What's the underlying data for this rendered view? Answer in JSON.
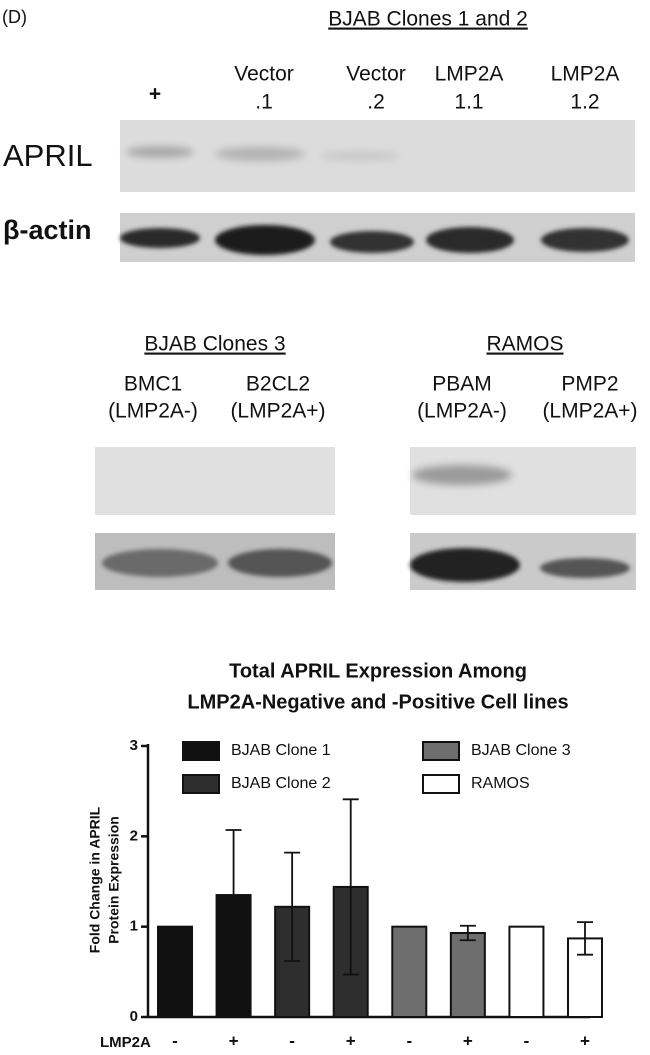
{
  "panel_label": "(D)",
  "blot_top": {
    "title": "BJAB Clones 1 and 2",
    "lanes": [
      [
        "+"
      ],
      [
        "Vector",
        ".1"
      ],
      [
        "Vector",
        ".2"
      ],
      [
        "LMP2A",
        "1.1"
      ],
      [
        "LMP2A",
        "1.2"
      ]
    ],
    "rows": [
      "APRIL",
      "β-actin"
    ]
  },
  "blot_clones3": {
    "title": "BJAB Clones 3",
    "lanes": [
      [
        "BMC1",
        "(LMP2A-)"
      ],
      [
        "B2CL2",
        "(LMP2A+)"
      ]
    ]
  },
  "blot_ramos": {
    "title": "RAMOS",
    "lanes": [
      [
        "PBAM",
        "(LMP2A-)"
      ],
      [
        "PMP2",
        "(LMP2A+)"
      ]
    ]
  },
  "chart_data": {
    "type": "bar",
    "title": [
      "Total APRIL Expression Among",
      "LMP2A-Negative and -Positive Cell lines"
    ],
    "ylabel": [
      "Fold Change in APRIL",
      "Protein Expression"
    ],
    "xlabel": "LMP2A",
    "categories": [
      "-",
      "+"
    ],
    "series": [
      {
        "name": "BJAB Clone 1",
        "color": "#111111",
        "values": [
          1,
          1.35
        ],
        "errors": [
          null,
          0.72
        ]
      },
      {
        "name": "BJAB Clone 2",
        "color": "#2e2e2e",
        "values": [
          1.22,
          1.44
        ],
        "errors": [
          0.6,
          0.97
        ]
      },
      {
        "name": "BJAB Clone 3",
        "color": "#6e6e6e",
        "values": [
          1,
          0.93
        ],
        "errors": [
          null,
          0.08
        ]
      },
      {
        "name": "RAMOS",
        "color": "#ffffff",
        "values": [
          1,
          0.87
        ],
        "errors": [
          null,
          0.18
        ]
      }
    ],
    "ylim": [
      0,
      3
    ],
    "yticks": [
      0,
      1,
      2,
      3
    ]
  }
}
